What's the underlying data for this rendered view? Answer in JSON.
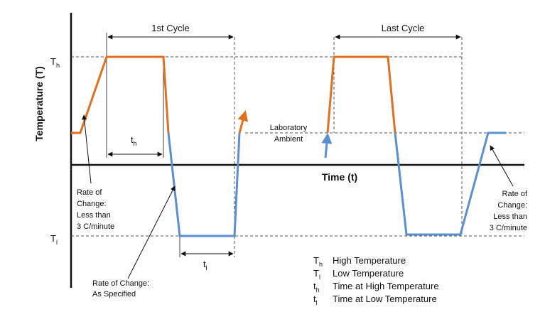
{
  "axes": {
    "y_label": "Temperature (T)",
    "x_label": "Time (t)",
    "th_tick": "T",
    "th_tick_sub": "h",
    "tl_tick": "T",
    "tl_tick_sub": "l"
  },
  "cycles": {
    "first": "1st Cycle",
    "last": "Last Cycle"
  },
  "labels": {
    "ambient_line1": "Laboratory",
    "ambient_line2": "Ambient",
    "th_dur": "t",
    "th_dur_sub": "h",
    "tl_dur": "t",
    "tl_dur_sub": "l"
  },
  "annotations": {
    "left_rate": [
      "Rate of",
      "Change:",
      "Less than",
      "3  C/minute"
    ],
    "specified_rate": [
      "Rate of Change:",
      "As Specified"
    ],
    "right_rate": [
      "Rate of",
      "Change:",
      "Less than",
      "3  C/minute"
    ]
  },
  "legend": [
    {
      "symbol": "T",
      "sub": "h",
      "text": "High Temperature"
    },
    {
      "symbol": "T",
      "sub": "l",
      "text": "Low Temperature"
    },
    {
      "symbol": "t",
      "sub": "h",
      "text": "Time at High Temperature"
    },
    {
      "symbol": "t",
      "sub": "l",
      "text": "Time at Low Temperature"
    }
  ],
  "colors": {
    "heating": "#E07020",
    "cooling": "#5B8FD0",
    "axis": "#111111",
    "guide": "#555555"
  }
}
